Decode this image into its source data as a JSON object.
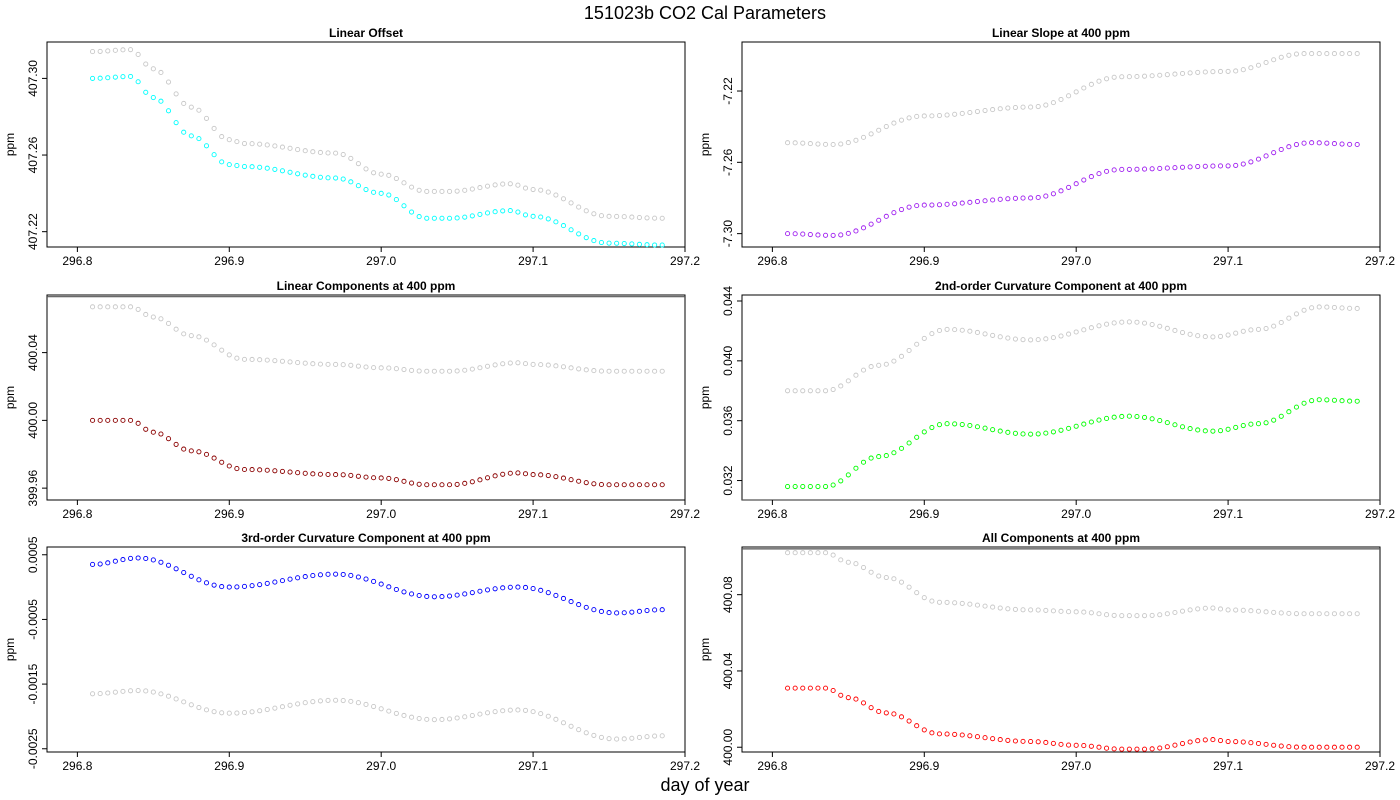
{
  "suptitle": "151023b   CO2 Cal Parameters",
  "xlabel": "day of year",
  "colors": {
    "reference": "#c8c8c8",
    "axis": "#000000"
  },
  "chart_data": [
    {
      "id": "linear-offset",
      "type": "scatter",
      "title": "Linear Offset",
      "ylabel": "ppm",
      "xlim": [
        296.78,
        297.2
      ],
      "ylim": [
        407.212,
        407.319
      ],
      "xticks": [
        296.8,
        296.9,
        297.0,
        297.1,
        297.2
      ],
      "xtick_labels": [
        "296.8",
        "296.9",
        "297.0",
        "297.1",
        "297.2"
      ],
      "yticks": [
        407.22,
        407.26,
        407.3
      ],
      "ytick_labels": [
        "407.22",
        "407.26",
        "407.30"
      ],
      "hline": null,
      "series": [
        {
          "name": "reference",
          "color": "#c8c8c8",
          "knots": [
            [
              296.81,
              407.314
            ],
            [
              296.835,
              407.315
            ],
            [
              296.85,
              407.305
            ],
            [
              296.875,
              407.285
            ],
            [
              296.9,
              407.268
            ],
            [
              296.91,
              407.266
            ],
            [
              296.97,
              407.261
            ],
            [
              297.0,
              407.25
            ],
            [
              297.03,
              407.241
            ],
            [
              297.045,
              407.241
            ],
            [
              297.085,
              407.245
            ],
            [
              297.1,
              407.242
            ],
            [
              297.15,
              407.228
            ],
            [
              297.185,
              407.227
            ]
          ]
        },
        {
          "name": "linear offset",
          "color": "#00ffff",
          "knots": [
            [
              296.81,
              407.3
            ],
            [
              296.835,
              407.301
            ],
            [
              296.85,
              407.29
            ],
            [
              296.875,
              407.27
            ],
            [
              296.9,
              407.255
            ],
            [
              296.91,
              407.254
            ],
            [
              296.97,
              407.248
            ],
            [
              297.0,
              407.24
            ],
            [
              297.03,
              407.227
            ],
            [
              297.045,
              407.227
            ],
            [
              297.085,
              407.231
            ],
            [
              297.1,
              407.228
            ],
            [
              297.15,
              407.214
            ],
            [
              297.185,
              407.213
            ]
          ]
        }
      ]
    },
    {
      "id": "linear-slope",
      "type": "scatter",
      "title": "Linear Slope at 400 ppm",
      "ylabel": "ppm",
      "xlim": [
        296.78,
        297.2
      ],
      "ylim": [
        -7.3075,
        -7.1925
      ],
      "xticks": [
        296.8,
        296.9,
        297.0,
        297.1,
        297.2
      ],
      "xtick_labels": [
        "296.8",
        "296.9",
        "297.0",
        "297.1",
        "297.2"
      ],
      "yticks": [
        -7.3,
        -7.26,
        -7.22
      ],
      "ytick_labels": [
        "-7.30",
        "-7.26",
        "-7.22"
      ],
      "hline": null,
      "series": [
        {
          "name": "reference",
          "color": "#c8c8c8",
          "knots": [
            [
              296.81,
              -7.249
            ],
            [
              296.84,
              -7.25
            ],
            [
              296.9,
              -7.234
            ],
            [
              296.97,
              -7.229
            ],
            [
              297.03,
              -7.212
            ],
            [
              297.1,
              -7.209
            ],
            [
              297.15,
              -7.199
            ],
            [
              297.185,
              -7.199
            ]
          ]
        },
        {
          "name": "linear slope",
          "color": "#a020f0",
          "knots": [
            [
              296.81,
              -7.3
            ],
            [
              296.84,
              -7.301
            ],
            [
              296.9,
              -7.284
            ],
            [
              296.97,
              -7.28
            ],
            [
              297.03,
              -7.264
            ],
            [
              297.1,
              -7.262
            ],
            [
              297.155,
              -7.249
            ],
            [
              297.185,
              -7.25
            ]
          ]
        }
      ]
    },
    {
      "id": "linear-components",
      "type": "scatter",
      "title": "Linear Components at 400 ppm",
      "ylabel": "ppm",
      "xlim": [
        296.78,
        297.2
      ],
      "ylim": [
        399.953,
        400.074
      ],
      "xticks": [
        296.8,
        296.9,
        297.0,
        297.1,
        297.2
      ],
      "xtick_labels": [
        "296.8",
        "296.9",
        "297.0",
        "297.1",
        "297.2"
      ],
      "yticks": [
        399.96,
        400.0,
        400.04
      ],
      "ytick_labels": [
        "399.96",
        "400.00",
        "400.04"
      ],
      "hline": 400.073,
      "series": [
        {
          "name": "reference",
          "color": "#c8c8c8",
          "knots": [
            [
              296.81,
              400.067
            ],
            [
              296.835,
              400.067
            ],
            [
              296.85,
              400.061
            ],
            [
              296.875,
              400.05
            ],
            [
              296.91,
              400.036
            ],
            [
              296.97,
              400.033
            ],
            [
              297.0,
              400.031
            ],
            [
              297.03,
              400.029
            ],
            [
              297.045,
              400.029
            ],
            [
              297.09,
              400.034
            ],
            [
              297.1,
              400.033
            ],
            [
              297.15,
              400.029
            ],
            [
              297.185,
              400.029
            ]
          ]
        },
        {
          "name": "linear components",
          "color": "#8b0000",
          "knots": [
            [
              296.81,
              400.0
            ],
            [
              296.835,
              400.0
            ],
            [
              296.85,
              399.993
            ],
            [
              296.875,
              399.982
            ],
            [
              296.91,
              399.971
            ],
            [
              296.97,
              399.968
            ],
            [
              297.0,
              399.966
            ],
            [
              297.03,
              399.962
            ],
            [
              297.045,
              399.962
            ],
            [
              297.09,
              399.969
            ],
            [
              297.1,
              399.968
            ],
            [
              297.15,
              399.962
            ],
            [
              297.185,
              399.962
            ]
          ]
        }
      ]
    },
    {
      "id": "curvature-2nd",
      "type": "scatter",
      "title": "2nd-order Curvature Component at 400 ppm",
      "ylabel": "ppm",
      "xlim": [
        296.78,
        297.2
      ],
      "ylim": [
        0.0307,
        0.0444
      ],
      "xticks": [
        296.8,
        296.9,
        297.0,
        297.1,
        297.2
      ],
      "xtick_labels": [
        "296.8",
        "296.9",
        "297.0",
        "297.1",
        "297.2"
      ],
      "yticks": [
        0.032,
        0.036,
        0.04,
        0.044
      ],
      "ytick_labels": [
        "0.032",
        "0.036",
        "0.040",
        "0.044"
      ],
      "hline": 0.0307,
      "series": [
        {
          "name": "reference",
          "color": "#c8c8c8",
          "knots": [
            [
              296.81,
              0.038
            ],
            [
              296.835,
              0.038
            ],
            [
              296.87,
              0.0397
            ],
            [
              296.915,
              0.0421
            ],
            [
              296.97,
              0.0414
            ],
            [
              297.035,
              0.0426
            ],
            [
              297.09,
              0.0416
            ],
            [
              297.12,
              0.0421
            ],
            [
              297.16,
              0.0436
            ],
            [
              297.185,
              0.0435
            ]
          ]
        },
        {
          "name": "2nd-order curvature",
          "color": "#00ff00",
          "knots": [
            [
              296.81,
              0.0316
            ],
            [
              296.835,
              0.0316
            ],
            [
              296.87,
              0.0336
            ],
            [
              296.915,
              0.0358
            ],
            [
              296.97,
              0.0351
            ],
            [
              297.035,
              0.0363
            ],
            [
              297.09,
              0.0353
            ],
            [
              297.12,
              0.0358
            ],
            [
              297.16,
              0.0374
            ],
            [
              297.185,
              0.0373
            ]
          ]
        }
      ]
    },
    {
      "id": "curvature-3rd",
      "type": "scatter",
      "title": "3rd-order Curvature Component at 400 ppm",
      "ylabel": "ppm",
      "xlim": [
        296.78,
        297.2
      ],
      "ylim": [
        -0.00255,
        0.00062
      ],
      "xticks": [
        296.8,
        296.9,
        297.0,
        297.1,
        297.2
      ],
      "xtick_labels": [
        "296.8",
        "296.9",
        "297.0",
        "297.1",
        "297.2"
      ],
      "yticks": [
        -0.0025,
        -0.0015,
        -0.0005,
        0.0005
      ],
      "ytick_labels": [
        "-0.0025",
        "-0.0015",
        "-0.0005",
        "0.0005"
      ],
      "hline": null,
      "series": [
        {
          "name": "reference",
          "color": "#c8c8c8",
          "knots": [
            [
              296.81,
              -0.00165
            ],
            [
              296.84,
              -0.0016
            ],
            [
              296.9,
              -0.00195
            ],
            [
              296.97,
              -0.00175
            ],
            [
              297.035,
              -0.00205
            ],
            [
              297.09,
              -0.0019
            ],
            [
              297.155,
              -0.00235
            ],
            [
              297.185,
              -0.0023
            ]
          ]
        },
        {
          "name": "3rd-order curvature",
          "color": "#0000ff",
          "knots": [
            [
              296.81,
              0.00035
            ],
            [
              296.84,
              0.00045
            ],
            [
              296.9,
              0.0
            ],
            [
              296.97,
              0.0002
            ],
            [
              297.035,
              -0.00015
            ],
            [
              297.09,
              0.0
            ],
            [
              297.155,
              -0.0004
            ],
            [
              297.185,
              -0.00035
            ]
          ]
        }
      ]
    },
    {
      "id": "all-components",
      "type": "scatter",
      "title": "All Components at 400 ppm",
      "ylabel": "ppm",
      "xlim": [
        296.78,
        297.2
      ],
      "ylim": [
        399.9975,
        400.105
      ],
      "xticks": [
        296.8,
        296.9,
        297.0,
        297.1,
        297.2
      ],
      "xtick_labels": [
        "296.8",
        "296.9",
        "297.0",
        "297.1",
        "297.2"
      ],
      "yticks": [
        400.0,
        400.04,
        400.08
      ],
      "ytick_labels": [
        "400.00",
        "400.04",
        "400.08"
      ],
      "hline": 400.104,
      "series": [
        {
          "name": "reference",
          "color": "#c8c8c8",
          "knots": [
            [
              296.81,
              400.102
            ],
            [
              296.835,
              400.102
            ],
            [
              296.85,
              400.097
            ],
            [
              296.875,
              400.089
            ],
            [
              296.91,
              400.076
            ],
            [
              296.97,
              400.072
            ],
            [
              297.0,
              400.071
            ],
            [
              297.03,
              400.069
            ],
            [
              297.045,
              400.069
            ],
            [
              297.09,
              400.073
            ],
            [
              297.1,
              400.072
            ],
            [
              297.15,
              400.07
            ],
            [
              297.185,
              400.07
            ]
          ]
        },
        {
          "name": "all components",
          "color": "#ff0000",
          "knots": [
            [
              296.81,
              400.031
            ],
            [
              296.835,
              400.031
            ],
            [
              296.85,
              400.026
            ],
            [
              296.875,
              400.018
            ],
            [
              296.91,
              400.007
            ],
            [
              296.97,
              400.003
            ],
            [
              297.0,
              400.001
            ],
            [
              297.03,
              399.999
            ],
            [
              297.045,
              399.999
            ],
            [
              297.09,
              400.004
            ],
            [
              297.1,
              400.003
            ],
            [
              297.15,
              400.0
            ],
            [
              297.185,
              400.0
            ]
          ]
        }
      ]
    }
  ]
}
